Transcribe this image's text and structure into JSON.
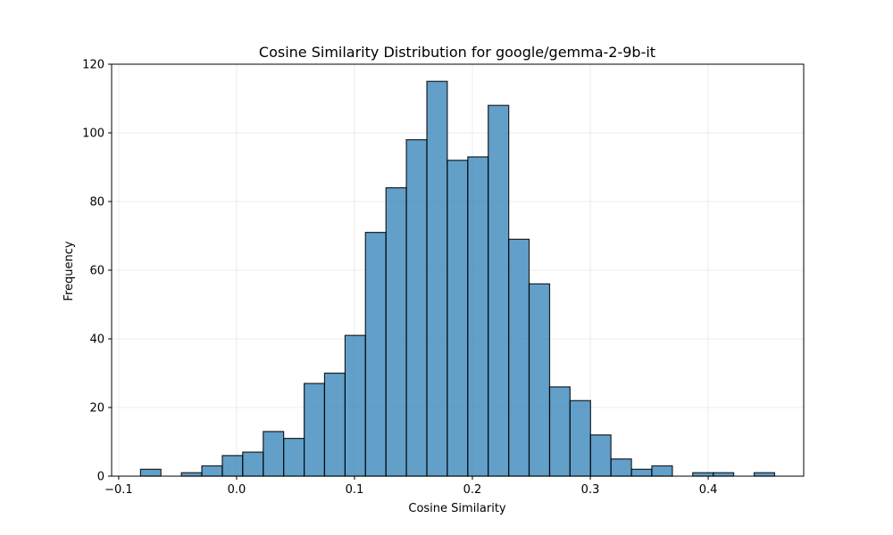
{
  "chart_data": {
    "type": "bar",
    "title": "Cosine Similarity Distribution for google/gemma-2-9b-it",
    "xlabel": "Cosine Similarity",
    "ylabel": "Frequency",
    "xlim": [
      -0.106,
      0.481
    ],
    "ylim": [
      0,
      120
    ],
    "grid": true,
    "bar_color": "#1f77b4",
    "bar_alpha": 0.7,
    "edge_color": "#000000",
    "xticks": [
      -0.1,
      0.0,
      0.1,
      0.2,
      0.3,
      0.4
    ],
    "xtick_labels": [
      "−0.1",
      "0.0",
      "0.1",
      "0.2",
      "0.3",
      "0.4"
    ],
    "yticks": [
      0,
      20,
      40,
      60,
      80,
      100,
      120
    ],
    "ytick_labels": [
      "0",
      "20",
      "40",
      "60",
      "80",
      "100",
      "120"
    ],
    "bin_edges": [
      -0.0815,
      -0.0642,
      -0.0468,
      -0.0295,
      -0.0121,
      0.0052,
      0.0226,
      0.0399,
      0.0573,
      0.0746,
      0.092,
      0.1093,
      0.1267,
      0.144,
      0.1614,
      0.1787,
      0.1961,
      0.2134,
      0.2308,
      0.2481,
      0.2655,
      0.2828,
      0.3002,
      0.3175,
      0.3349,
      0.3522,
      0.3696,
      0.3869,
      0.4043,
      0.4216,
      0.439,
      0.4563
    ],
    "counts": [
      2,
      0,
      1,
      3,
      6,
      7,
      13,
      11,
      27,
      30,
      41,
      71,
      84,
      98,
      115,
      92,
      93,
      108,
      69,
      56,
      26,
      22,
      12,
      5,
      2,
      3,
      0,
      1,
      1,
      0,
      1
    ]
  }
}
